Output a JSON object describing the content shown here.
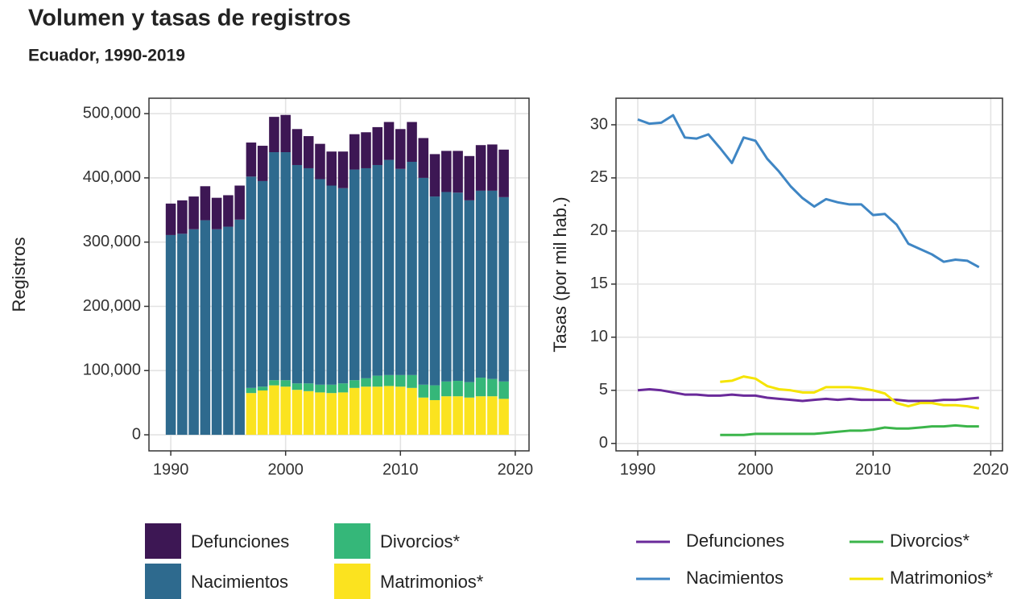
{
  "title": "Volumen y tasas de registros",
  "subtitle": "Ecuador, 1990-2019",
  "chart_data": [
    {
      "type": "stacked_bar",
      "y_label": "Registros",
      "x": [
        1990,
        1991,
        1992,
        1993,
        1994,
        1995,
        1996,
        1997,
        1998,
        1999,
        2000,
        2001,
        2002,
        2003,
        2004,
        2005,
        2006,
        2007,
        2008,
        2009,
        2010,
        2011,
        2012,
        2013,
        2014,
        2015,
        2016,
        2017,
        2018,
        2019
      ],
      "xlim": [
        1988.1,
        2021.2
      ],
      "xticks": [
        1990,
        2000,
        2010,
        2020
      ],
      "ylim": [
        -25000,
        524000
      ],
      "yticks": [
        0,
        {
          "value": 100000,
          "label": "100,000"
        },
        {
          "value": 200000,
          "label": "200,000"
        },
        {
          "value": 300000,
          "label": "300,000"
        },
        {
          "value": 400000,
          "label": "400,000"
        },
        {
          "value": 500000,
          "label": "500,000"
        }
      ],
      "grid": true,
      "series": [
        {
          "name": "Defunciones",
          "color": "#3d1754",
          "values": [
            49000,
            52000,
            51000,
            53000,
            49000,
            49000,
            53000,
            53000,
            55000,
            55000,
            58000,
            56000,
            50000,
            55000,
            53000,
            57000,
            55000,
            56000,
            59000,
            59000,
            62000,
            62000,
            62000,
            66000,
            64000,
            65000,
            69000,
            71000,
            72000,
            74000
          ]
        },
        {
          "name": "Nacimientos",
          "color": "#2e6a8e",
          "values": [
            311000,
            313000,
            320000,
            334000,
            320000,
            324000,
            335000,
            329000,
            320000,
            355000,
            355000,
            340000,
            335000,
            320000,
            310000,
            304000,
            328000,
            327000,
            328000,
            335000,
            321000,
            332000,
            322000,
            294000,
            295000,
            293000,
            283000,
            291000,
            293000,
            287000
          ]
        },
        {
          "name": "Divorcios*",
          "color": "#35b779",
          "values": [
            null,
            null,
            null,
            null,
            null,
            null,
            null,
            8000,
            6000,
            8000,
            10000,
            10000,
            12000,
            12000,
            13000,
            14000,
            12000,
            13000,
            17000,
            17000,
            18000,
            20000,
            20000,
            23000,
            23000,
            24000,
            24000,
            29000,
            27000,
            27000
          ]
        },
        {
          "name": "Matrimonios*",
          "color": "#fbe31f",
          "values": [
            null,
            null,
            null,
            null,
            null,
            null,
            null,
            65000,
            69000,
            77000,
            75000,
            70000,
            68000,
            66000,
            65000,
            66000,
            73000,
            75000,
            75000,
            76000,
            75000,
            73000,
            58000,
            54000,
            60000,
            60000,
            58000,
            60000,
            60000,
            56000
          ]
        }
      ]
    },
    {
      "type": "line",
      "y_label": "Tasas (por mil hab.)",
      "x": [
        1990,
        1991,
        1992,
        1993,
        1994,
        1995,
        1996,
        1997,
        1998,
        1999,
        2000,
        2001,
        2002,
        2003,
        2004,
        2005,
        2006,
        2007,
        2008,
        2009,
        2010,
        2011,
        2012,
        2013,
        2014,
        2015,
        2016,
        2017,
        2018,
        2019
      ],
      "xlim": [
        1988.15,
        2021.0
      ],
      "xticks": [
        1990,
        2000,
        2010,
        2020
      ],
      "ylim": [
        -0.7,
        32.5
      ],
      "yticks": [
        0,
        5,
        10,
        15,
        20,
        25,
        30
      ],
      "grid": true,
      "series": [
        {
          "name": "Defunciones",
          "color": "#6a2a9a",
          "values": [
            5.0,
            5.1,
            5.0,
            4.8,
            4.6,
            4.6,
            4.5,
            4.5,
            4.6,
            4.5,
            4.5,
            4.3,
            4.2,
            4.1,
            4.0,
            4.1,
            4.2,
            4.1,
            4.2,
            4.1,
            4.1,
            4.1,
            4.1,
            4.0,
            4.0,
            4.0,
            4.1,
            4.1,
            4.2,
            4.3
          ]
        },
        {
          "name": "Nacimientos",
          "color": "#3f86c4",
          "values": [
            30.5,
            30.1,
            30.2,
            30.9,
            28.8,
            28.7,
            29.1,
            27.8,
            26.4,
            28.8,
            28.5,
            26.8,
            25.6,
            24.2,
            23.1,
            22.3,
            23.0,
            22.7,
            22.5,
            22.5,
            21.5,
            21.6,
            20.6,
            18.8,
            18.3,
            17.8,
            17.1,
            17.3,
            17.2,
            16.6
          ]
        },
        {
          "name": "Divorcios*",
          "color": "#3bb54a",
          "values": [
            null,
            null,
            null,
            null,
            null,
            null,
            null,
            0.8,
            0.8,
            0.8,
            0.9,
            0.9,
            0.9,
            0.9,
            0.9,
            0.9,
            1.0,
            1.1,
            1.2,
            1.2,
            1.3,
            1.5,
            1.4,
            1.4,
            1.5,
            1.6,
            1.6,
            1.7,
            1.6,
            1.6
          ]
        },
        {
          "name": "Matrimonios*",
          "color": "#f5e400",
          "values": [
            null,
            null,
            null,
            null,
            null,
            null,
            null,
            5.8,
            5.9,
            6.3,
            6.1,
            5.4,
            5.1,
            5.0,
            4.8,
            4.8,
            5.3,
            5.3,
            5.3,
            5.2,
            5.0,
            4.7,
            3.8,
            3.5,
            3.8,
            3.8,
            3.6,
            3.6,
            3.5,
            3.3
          ]
        }
      ]
    }
  ]
}
